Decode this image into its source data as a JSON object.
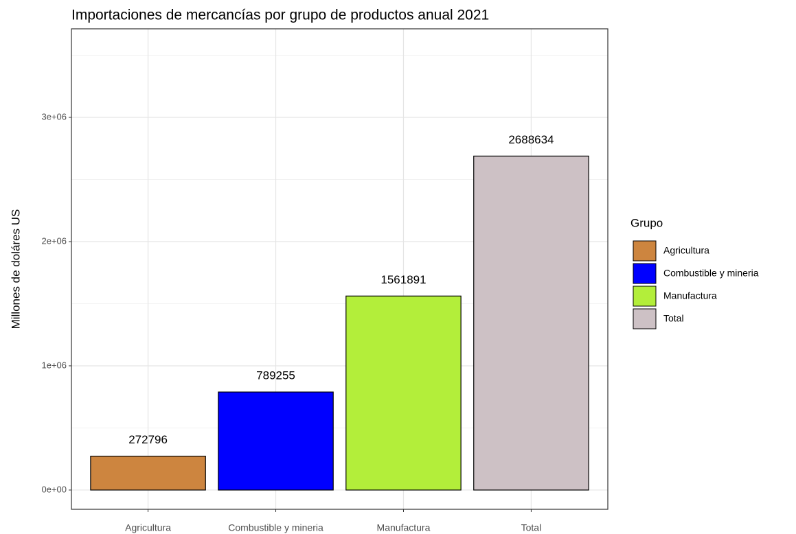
{
  "chart_data": {
    "type": "bar",
    "title": "Importaciones de mercancías por grupo de productos anual 2021",
    "y_label": "Millones de doláres US",
    "legend_title": "Grupo",
    "categories": [
      "Agricultura",
      "Combustible y mineria",
      "Manufactura",
      "Total"
    ],
    "values": [
      272796,
      789255,
      1561891,
      2688634
    ],
    "colors": [
      "#CD853F",
      "#0000FF",
      "#B3EE3A",
      "#CDC1C5"
    ],
    "ylim": [
      -155000,
      3713000
    ],
    "yticks": [
      {
        "value": 0,
        "label": "0e+00"
      },
      {
        "value": 1000000,
        "label": "1e+06"
      },
      {
        "value": 2000000,
        "label": "2e+06"
      },
      {
        "value": 3000000,
        "label": "3e+06"
      }
    ],
    "minor_yticks": [
      500000,
      1500000,
      2500000,
      3500000
    ],
    "grid": true,
    "legend": "right"
  }
}
